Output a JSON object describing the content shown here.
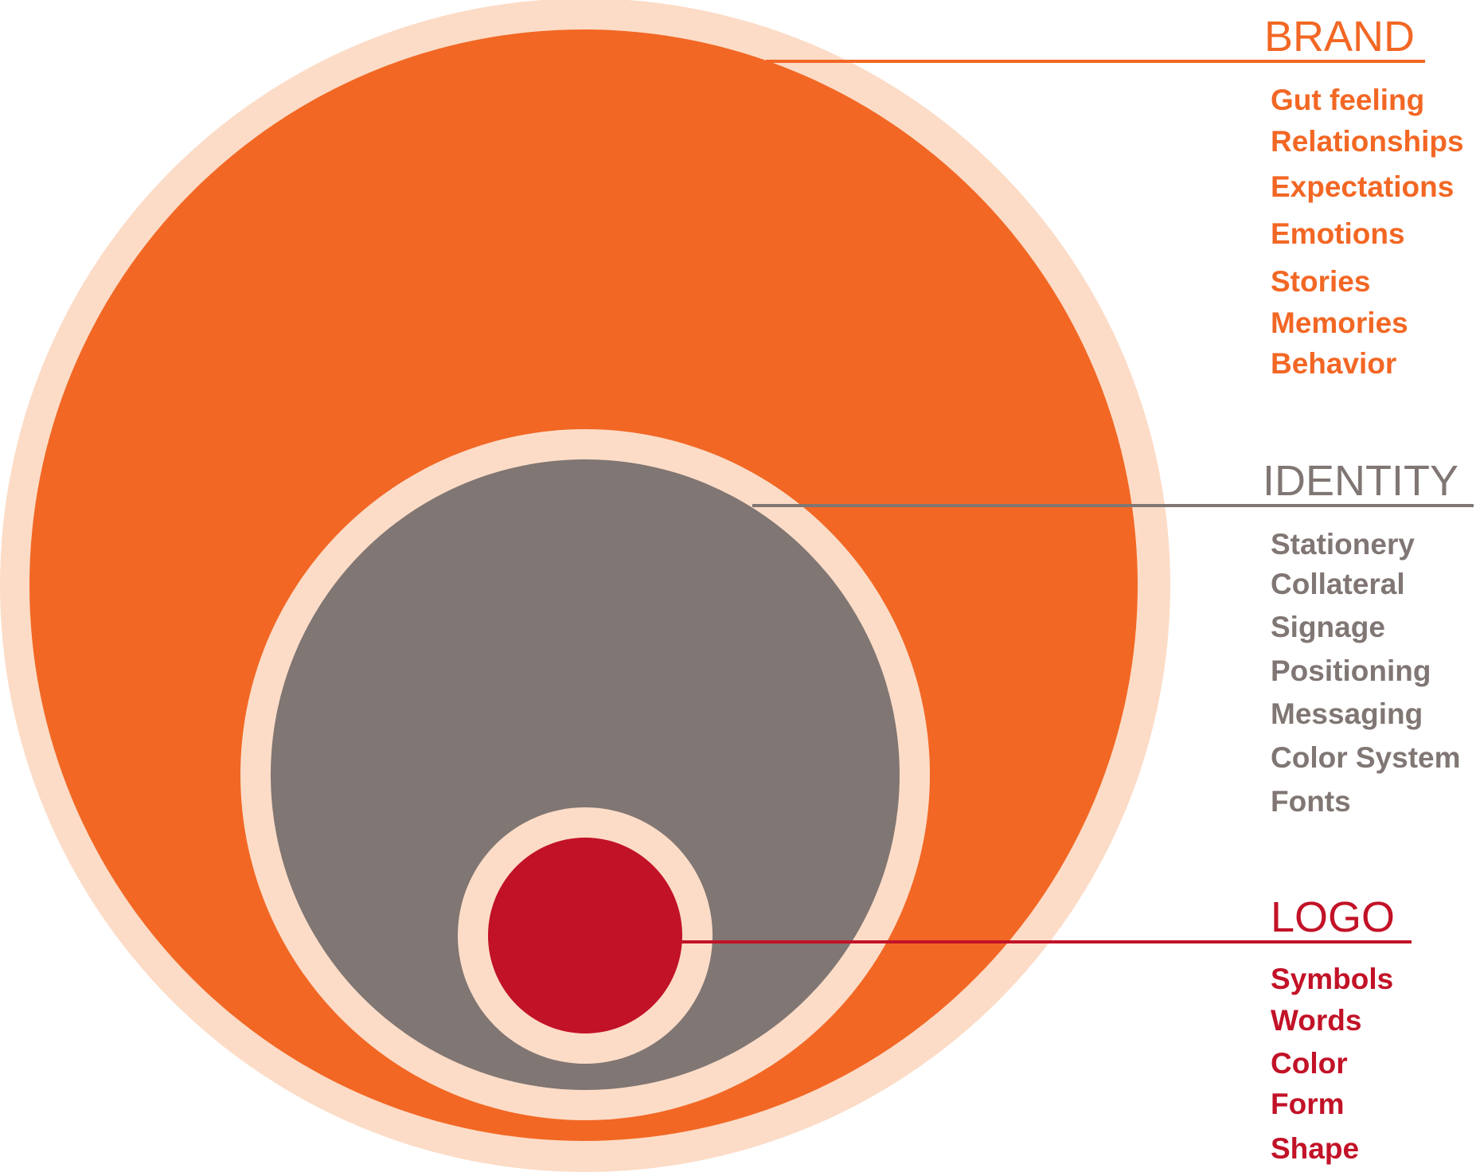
{
  "colors": {
    "halo": "#fcdcc7",
    "brand": "#f26724",
    "identity": "#807673",
    "logo": "#c21227"
  },
  "brand": {
    "heading": "BRAND",
    "items": [
      "Gut feeling",
      "Relationships",
      "Expectations",
      "Emotions",
      "Stories",
      "Memories",
      "Behavior"
    ]
  },
  "identity": {
    "heading": "IDENTITY",
    "items": [
      "Stationery",
      "Collateral",
      "Signage",
      "Positioning",
      "Messaging",
      "Color System",
      "Fonts"
    ]
  },
  "logo": {
    "heading": "LOGO",
    "items": [
      "Symbols",
      "Words",
      "Color",
      "Form",
      "Shape"
    ]
  }
}
